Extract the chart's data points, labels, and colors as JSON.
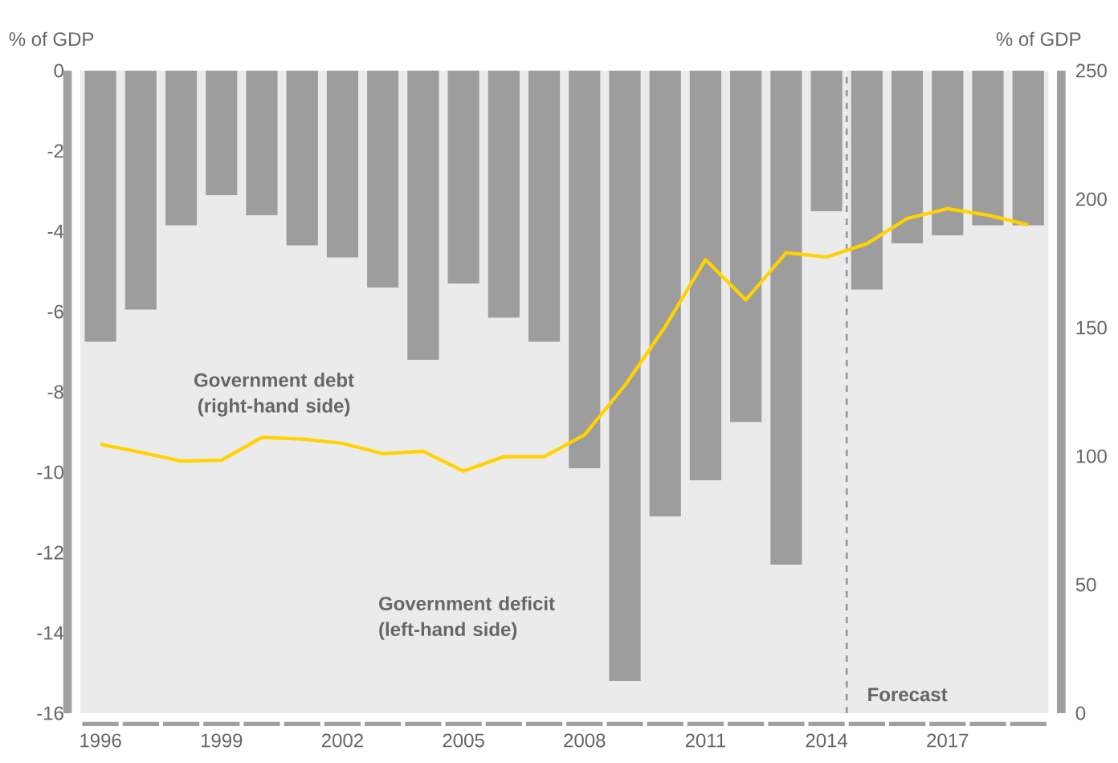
{
  "chart_data": {
    "type": "bar",
    "ylabel": "% of GDP",
    "y2label": "% of GDP",
    "x": [
      1996,
      1997,
      1998,
      1999,
      2000,
      2001,
      2002,
      2003,
      2004,
      2005,
      2006,
      2007,
      2008,
      2009,
      2010,
      2011,
      2012,
      2013,
      2014,
      2015,
      2016,
      2017,
      2018,
      2019
    ],
    "xlim": [
      1995.5,
      2019.5
    ],
    "xticks": [
      1996,
      1999,
      2002,
      2005,
      2008,
      2011,
      2014,
      2017
    ],
    "ylim": [
      -16,
      0
    ],
    "yticks": [
      -16,
      -14,
      -12,
      -10,
      -8,
      -6,
      -4,
      -2,
      0
    ],
    "y2lim": [
      0,
      250
    ],
    "y2ticks": [
      0,
      50,
      100,
      150,
      200,
      250
    ],
    "series": [
      {
        "name": "Government deficit (left-hand side)",
        "color": "#9d9d9d",
        "values": [
          -6.75,
          -5.95,
          -3.85,
          -3.1,
          -3.6,
          -4.35,
          -4.65,
          -5.4,
          -7.2,
          -5.3,
          -6.15,
          -6.75,
          -9.9,
          -15.2,
          -11.1,
          -10.2,
          -8.75,
          -12.3,
          -3.5,
          -5.45,
          -4.3,
          -4.1,
          -3.85,
          -3.85
        ]
      },
      {
        "name": "Government debt (right-hand side)",
        "type": "line",
        "axis": "y2",
        "color": "#ffd200",
        "values": [
          104.6,
          101.5,
          98.1,
          98.5,
          107.3,
          106.7,
          105,
          101,
          101.9,
          94.2,
          99.8,
          99.8,
          108.3,
          127.5,
          150.4,
          176.5,
          160.8,
          179.2,
          177.5,
          182.7,
          192.5,
          196.3,
          193.8,
          190
        ]
      }
    ],
    "ref_lines": [
      {
        "axis": "x",
        "value": 2014.5,
        "label": "Forecast",
        "color": "#999999",
        "line_style": "dashed"
      }
    ]
  }
}
